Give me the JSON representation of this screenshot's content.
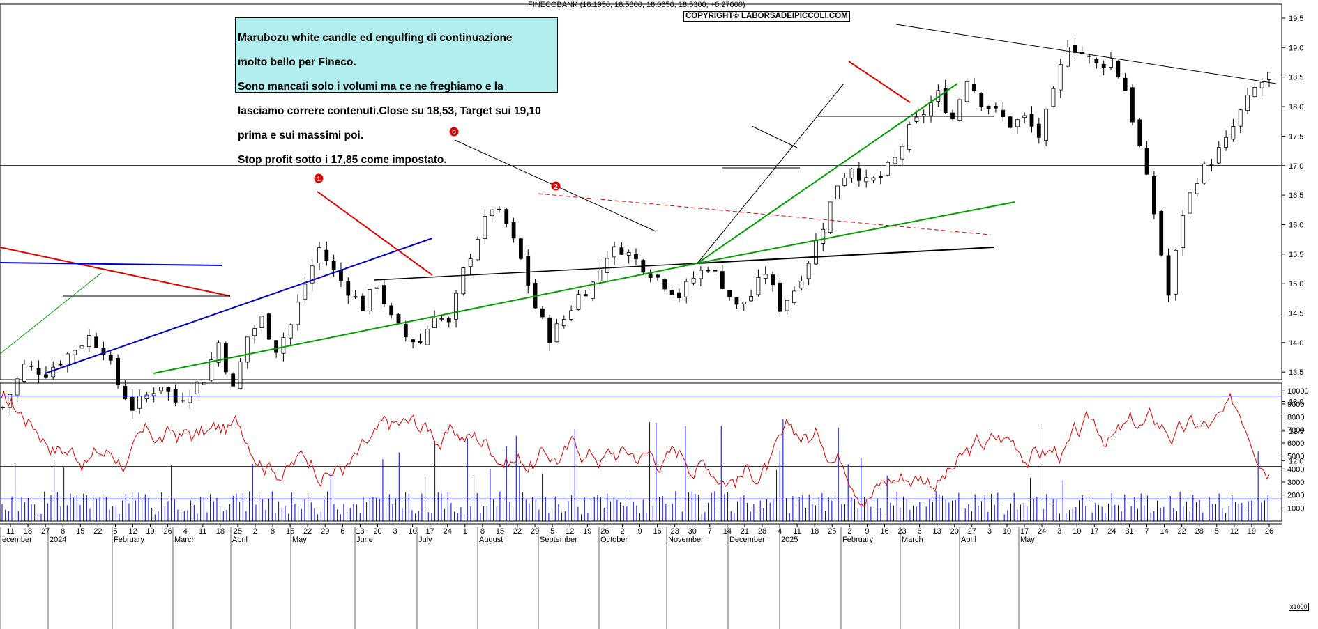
{
  "header": {
    "symbol_line": "FINECOBANK (18.1950, 18.5300, 18.0650, 18.5300, +0.27000)",
    "copyright": "COPYRIGHT© LABORSADEIPICCOLI.COM"
  },
  "annotation": {
    "lines": [
      "Marubozu white candle ed engulfing di continuazione",
      "molto bello per Fineco.",
      "Sono mancati solo i volumi ma ce ne freghiamo e la",
      "lasciamo correre contenuti.Close su 18,53, Target sui 19,10",
      "prima e sui massimi poi.",
      "Stop profit sotto i 17,85 come impostato."
    ]
  },
  "chart_data": [
    {
      "type": "candlestick",
      "x_labels": {
        "days": [
          "11",
          "18",
          "27",
          "8",
          "15",
          "22",
          "5",
          "12",
          "19",
          "26",
          "4",
          "11",
          "18",
          "25",
          "2",
          "8",
          "15",
          "22",
          "29",
          "6",
          "13",
          "20",
          "3",
          "10",
          "17",
          "24",
          "1",
          "8",
          "15",
          "22",
          "29",
          "5",
          "12",
          "19",
          "26",
          "2",
          "9",
          "16",
          "23",
          "30",
          "7",
          "14",
          "21",
          "28",
          "4",
          "11",
          "18",
          "25",
          "2",
          "9",
          "16",
          "23",
          "6",
          "13",
          "20",
          "27",
          "3",
          "10",
          "17",
          "24",
          "3",
          "10",
          "17",
          "24",
          "31",
          "7",
          "14",
          "22",
          "28",
          "5",
          "12",
          "19",
          "26"
        ],
        "months": [
          "ecember",
          "2024",
          "February",
          "March",
          "April",
          "May",
          "June",
          "July",
          "August",
          "September",
          "October",
          "November",
          "December",
          "2025",
          "February",
          "March",
          "April",
          "May"
        ]
      },
      "y_ticks": [
        12.0,
        12.5,
        13.0,
        13.5,
        14.0,
        14.5,
        15.0,
        15.5,
        16.0,
        16.5,
        17.0,
        17.5,
        18.0,
        18.5,
        19.0,
        19.5
      ],
      "ylim": [
        11.7,
        19.8
      ],
      "horizontal_levels": [
        17.0,
        11.9
      ],
      "wave_labels": [
        "0",
        "1",
        "2"
      ],
      "close_path": [
        [
          0,
          12.9
        ],
        [
          3,
          13.6
        ],
        [
          6,
          13.5
        ],
        [
          9,
          13.8
        ],
        [
          12,
          14.1
        ],
        [
          14,
          13.9
        ],
        [
          16,
          13.3
        ],
        [
          18,
          12.9
        ],
        [
          20,
          13.1
        ],
        [
          22,
          13.3
        ],
        [
          24,
          13.0
        ],
        [
          26,
          13.2
        ],
        [
          28,
          13.4
        ],
        [
          30,
          14.0
        ],
        [
          32,
          13.2
        ],
        [
          34,
          14.1
        ],
        [
          36,
          14.4
        ],
        [
          38,
          13.9
        ],
        [
          40,
          14.3
        ],
        [
          42,
          15.0
        ],
        [
          44,
          15.6
        ],
        [
          46,
          15.2
        ],
        [
          48,
          14.9
        ],
        [
          50,
          14.6
        ],
        [
          52,
          15.0
        ],
        [
          54,
          14.4
        ],
        [
          56,
          14.1
        ],
        [
          58,
          14.0
        ],
        [
          60,
          14.5
        ],
        [
          62,
          14.3
        ],
        [
          64,
          15.2
        ],
        [
          66,
          15.8
        ],
        [
          68,
          16.3
        ],
        [
          70,
          16.0
        ],
        [
          72,
          15.4
        ],
        [
          74,
          14.6
        ],
        [
          76,
          14.1
        ],
        [
          78,
          14.4
        ],
        [
          80,
          14.8
        ],
        [
          82,
          15.0
        ],
        [
          84,
          15.5
        ],
        [
          86,
          15.6
        ],
        [
          88,
          15.4
        ],
        [
          90,
          15.2
        ],
        [
          92,
          15.0
        ],
        [
          94,
          14.8
        ],
        [
          96,
          15.1
        ],
        [
          98,
          15.3
        ],
        [
          100,
          15.0
        ],
        [
          102,
          14.6
        ],
        [
          104,
          14.8
        ],
        [
          106,
          15.2
        ],
        [
          108,
          14.6
        ],
        [
          110,
          14.9
        ],
        [
          112,
          15.4
        ],
        [
          114,
          16.0
        ],
        [
          116,
          16.7
        ],
        [
          118,
          17.0
        ],
        [
          120,
          16.7
        ],
        [
          122,
          16.8
        ],
        [
          124,
          17.1
        ],
        [
          126,
          17.6
        ],
        [
          128,
          17.9
        ],
        [
          130,
          18.2
        ],
        [
          132,
          17.8
        ],
        [
          134,
          18.5
        ],
        [
          136,
          18.1
        ],
        [
          138,
          17.9
        ],
        [
          140,
          17.7
        ],
        [
          142,
          17.8
        ],
        [
          144,
          17.5
        ],
        [
          146,
          18.2
        ],
        [
          148,
          19.1
        ],
        [
          150,
          18.9
        ],
        [
          152,
          18.7
        ],
        [
          154,
          18.8
        ],
        [
          156,
          18.3
        ],
        [
          158,
          17.3
        ],
        [
          160,
          16.2
        ],
        [
          162,
          14.8
        ],
        [
          164,
          16.2
        ],
        [
          166,
          16.8
        ],
        [
          168,
          17.1
        ],
        [
          170,
          17.4
        ],
        [
          172,
          17.9
        ],
        [
          174,
          18.3
        ],
        [
          176,
          18.53
        ]
      ]
    },
    {
      "type": "bar+line",
      "y_ticks": [
        1000,
        2000,
        3000,
        4000,
        5000,
        6000,
        7000,
        8000,
        9000,
        10000
      ],
      "ylim": [
        0,
        10600
      ],
      "unit": "x1000",
      "volume_average": 1700,
      "oscillator_upper_band": 9600
    }
  ]
}
